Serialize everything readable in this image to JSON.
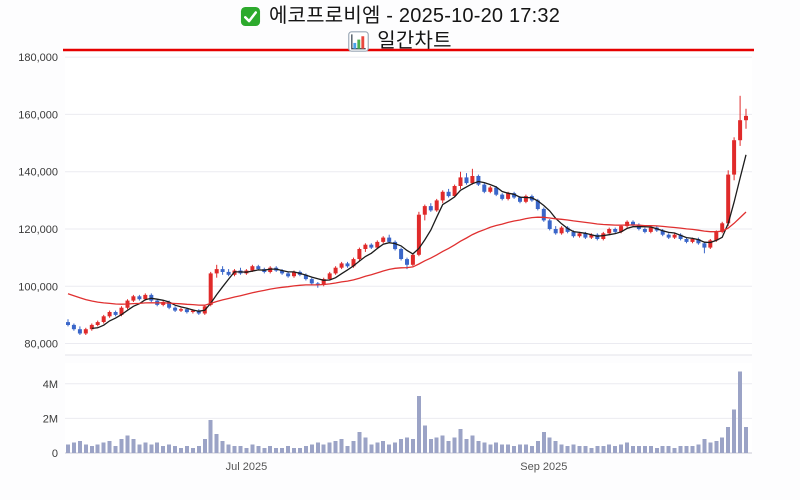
{
  "header": {
    "title": "에코프로비엠 - 2025-10-20 17:32",
    "subtitle": "일간차트",
    "check_icon": "green-check-icon",
    "chart_icon": "bar-chart-icon"
  },
  "colors": {
    "up": "#e02a2a",
    "down": "#3a66c9",
    "ma_short": "#1c1c1c",
    "ma_long": "#e03030",
    "volume_bar": "#9ba3c6",
    "limit_line": "#e60000",
    "grid": "#ebebf1",
    "axis_text": "#3a3a3a",
    "x_axis_text": "#555555",
    "panel_bg": "#ffffff"
  },
  "chart_data": {
    "type": "candlestick",
    "symbol": "에코프로비엠",
    "as_of": "2025-10-20 17:32",
    "title": "일간차트",
    "legend_position": "none",
    "grid": true,
    "price_axis": {
      "range": [
        76000,
        182500
      ],
      "ticks": [
        80000,
        100000,
        120000,
        140000,
        160000,
        180000
      ],
      "labels": [
        "80,000",
        "100,000",
        "120,000",
        "140,000",
        "160,000",
        "180,000"
      ]
    },
    "volume_axis": {
      "range": [
        0,
        5200000
      ],
      "ticks": [
        0,
        2000000,
        4000000
      ],
      "labels": [
        "0",
        "2M",
        "4M"
      ]
    },
    "x_ticks": [
      {
        "label": "Jul 2025",
        "index": 30
      },
      {
        "label": "Sep 2025",
        "index": 80
      }
    ],
    "overlays": {
      "top_limit_line_value": 182500,
      "ma_short_period": 5,
      "ma_long_ema": {
        "alpha": 0.055,
        "seed": 98000
      }
    },
    "ohlc": [
      [
        87500,
        88500,
        86000,
        86500
      ],
      [
        86500,
        87000,
        84500,
        85000
      ],
      [
        85000,
        86000,
        83000,
        83500
      ],
      [
        83500,
        85500,
        83000,
        85000
      ],
      [
        85000,
        87000,
        84500,
        86500
      ],
      [
        86500,
        88000,
        86000,
        87500
      ],
      [
        87500,
        90000,
        87000,
        89500
      ],
      [
        89500,
        91500,
        89000,
        91000
      ],
      [
        91000,
        91500,
        89500,
        90000
      ],
      [
        90000,
        93000,
        89500,
        92500
      ],
      [
        92500,
        95500,
        92000,
        95000
      ],
      [
        95000,
        97000,
        94500,
        96500
      ],
      [
        96500,
        97000,
        95000,
        95500
      ],
      [
        95500,
        97500,
        95000,
        97000
      ],
      [
        97000,
        97500,
        94500,
        95000
      ],
      [
        95000,
        95500,
        93000,
        93500
      ],
      [
        93500,
        95000,
        93000,
        94500
      ],
      [
        94500,
        95000,
        92000,
        92500
      ],
      [
        92500,
        93000,
        91000,
        91500
      ],
      [
        91500,
        92500,
        91000,
        92000
      ],
      [
        92000,
        92500,
        90500,
        91000
      ],
      [
        91000,
        92000,
        90500,
        91500
      ],
      [
        91500,
        92000,
        90000,
        90500
      ],
      [
        90500,
        93500,
        90000,
        93000
      ],
      [
        93500,
        105000,
        93000,
        104500
      ],
      [
        104500,
        107500,
        103000,
        106000
      ],
      [
        106000,
        107000,
        104000,
        105000
      ],
      [
        105000,
        106000,
        103500,
        104000
      ],
      [
        104000,
        106000,
        103500,
        105500
      ],
      [
        105500,
        106500,
        104000,
        104500
      ],
      [
        104500,
        106000,
        104000,
        105500
      ],
      [
        105500,
        107500,
        105000,
        107000
      ],
      [
        107000,
        107500,
        105500,
        106000
      ],
      [
        106000,
        106500,
        104500,
        105000
      ],
      [
        105000,
        107000,
        104500,
        106500
      ],
      [
        106500,
        107000,
        105000,
        105500
      ],
      [
        105500,
        106000,
        104000,
        104500
      ],
      [
        104500,
        105000,
        103000,
        103500
      ],
      [
        103500,
        105500,
        103000,
        105000
      ],
      [
        105000,
        105500,
        103500,
        104000
      ],
      [
        104000,
        104500,
        102000,
        102500
      ],
      [
        102500,
        103000,
        100500,
        101000
      ],
      [
        101000,
        101500,
        99500,
        100500
      ],
      [
        100500,
        103000,
        100000,
        102500
      ],
      [
        102500,
        105000,
        102000,
        104500
      ],
      [
        104500,
        107000,
        104000,
        106500
      ],
      [
        106500,
        108500,
        106000,
        108000
      ],
      [
        108000,
        108500,
        106500,
        107000
      ],
      [
        107000,
        110000,
        106500,
        109500
      ],
      [
        109500,
        113500,
        109000,
        113000
      ],
      [
        113000,
        115000,
        112000,
        114500
      ],
      [
        114500,
        115000,
        113000,
        113500
      ],
      [
        113500,
        116000,
        113000,
        115500
      ],
      [
        115500,
        117500,
        115000,
        117000
      ],
      [
        117000,
        118000,
        115000,
        115500
      ],
      [
        115500,
        116000,
        112500,
        113000
      ],
      [
        113000,
        113500,
        109000,
        109500
      ],
      [
        109500,
        110000,
        106000,
        107500
      ],
      [
        107500,
        111500,
        107000,
        111000
      ],
      [
        111000,
        126000,
        110500,
        125000
      ],
      [
        125000,
        128500,
        123000,
        128000
      ],
      [
        128000,
        129000,
        126000,
        126500
      ],
      [
        126500,
        130500,
        126000,
        130000
      ],
      [
        130000,
        133500,
        129000,
        133000
      ],
      [
        133000,
        134000,
        131000,
        131500
      ],
      [
        131500,
        135500,
        131000,
        135000
      ],
      [
        135000,
        140000,
        134000,
        138000
      ],
      [
        138000,
        139500,
        135500,
        136000
      ],
      [
        136000,
        141000,
        135500,
        138500
      ],
      [
        138500,
        139000,
        135000,
        135500
      ],
      [
        135500,
        136000,
        132500,
        133000
      ],
      [
        133000,
        135000,
        132500,
        134500
      ],
      [
        134500,
        135000,
        131500,
        132000
      ],
      [
        132000,
        132500,
        130000,
        130500
      ],
      [
        130500,
        133000,
        130000,
        132500
      ],
      [
        132500,
        133000,
        130500,
        131000
      ],
      [
        131000,
        131500,
        129000,
        129500
      ],
      [
        129500,
        132000,
        129000,
        131500
      ],
      [
        131500,
        132000,
        129500,
        130000
      ],
      [
        130000,
        130500,
        126500,
        127000
      ],
      [
        127000,
        127500,
        122500,
        123000
      ],
      [
        123000,
        123500,
        119500,
        120000
      ],
      [
        120000,
        121000,
        118000,
        118500
      ],
      [
        118500,
        121000,
        118000,
        120500
      ],
      [
        120500,
        121000,
        118500,
        119000
      ],
      [
        119000,
        119500,
        117000,
        117500
      ],
      [
        117500,
        119000,
        117000,
        118500
      ],
      [
        118500,
        119000,
        116500,
        117000
      ],
      [
        117000,
        118500,
        116500,
        118000
      ],
      [
        118000,
        118500,
        116000,
        116500
      ],
      [
        116500,
        119000,
        116000,
        118500
      ],
      [
        118500,
        120500,
        118000,
        120000
      ],
      [
        120000,
        120500,
        118500,
        119000
      ],
      [
        119000,
        121500,
        118500,
        121000
      ],
      [
        121000,
        123000,
        120500,
        122500
      ],
      [
        122500,
        123000,
        121000,
        121500
      ],
      [
        121500,
        122000,
        119500,
        120000
      ],
      [
        120000,
        120500,
        118500,
        119000
      ],
      [
        119000,
        121000,
        118500,
        120500
      ],
      [
        120500,
        121000,
        119000,
        119500
      ],
      [
        119500,
        120000,
        117500,
        118000
      ],
      [
        118000,
        118500,
        116500,
        117000
      ],
      [
        117000,
        118500,
        116500,
        118000
      ],
      [
        118000,
        118500,
        116000,
        116500
      ],
      [
        116500,
        117000,
        115000,
        115500
      ],
      [
        115500,
        117000,
        115000,
        116500
      ],
      [
        116500,
        117000,
        114500,
        115000
      ],
      [
        115000,
        115500,
        111500,
        113500
      ],
      [
        113500,
        116500,
        113000,
        116000
      ],
      [
        116000,
        119500,
        115500,
        119000
      ],
      [
        119000,
        122500,
        118500,
        122000
      ],
      [
        122000,
        140500,
        121000,
        139000
      ],
      [
        139000,
        152000,
        137000,
        151000
      ],
      [
        151000,
        166500,
        149000,
        158000
      ],
      [
        158000,
        162000,
        155000,
        159500
      ]
    ],
    "volume": [
      500000,
      600000,
      700000,
      500000,
      400000,
      500000,
      600000,
      700000,
      400000,
      800000,
      1000000,
      800000,
      500000,
      600000,
      500000,
      600000,
      400000,
      500000,
      400000,
      300000,
      400000,
      300000,
      400000,
      800000,
      1900000,
      1100000,
      700000,
      500000,
      400000,
      400000,
      300000,
      500000,
      400000,
      300000,
      400000,
      300000,
      300000,
      400000,
      300000,
      300000,
      400000,
      500000,
      600000,
      500000,
      600000,
      700000,
      800000,
      400000,
      700000,
      1200000,
      900000,
      500000,
      600000,
      700000,
      500000,
      600000,
      800000,
      900000,
      800000,
      3300000,
      1600000,
      800000,
      900000,
      1000000,
      700000,
      900000,
      1400000,
      800000,
      1000000,
      700000,
      600000,
      500000,
      600000,
      500000,
      500000,
      400000,
      500000,
      500000,
      400000,
      700000,
      1200000,
      900000,
      700000,
      500000,
      400000,
      500000,
      400000,
      400000,
      300000,
      400000,
      400000,
      500000,
      400000,
      500000,
      600000,
      400000,
      400000,
      400000,
      400000,
      300000,
      400000,
      400000,
      300000,
      400000,
      400000,
      400000,
      500000,
      800000,
      600000,
      700000,
      900000,
      1500000,
      2500000,
      4700000,
      1500000
    ]
  }
}
